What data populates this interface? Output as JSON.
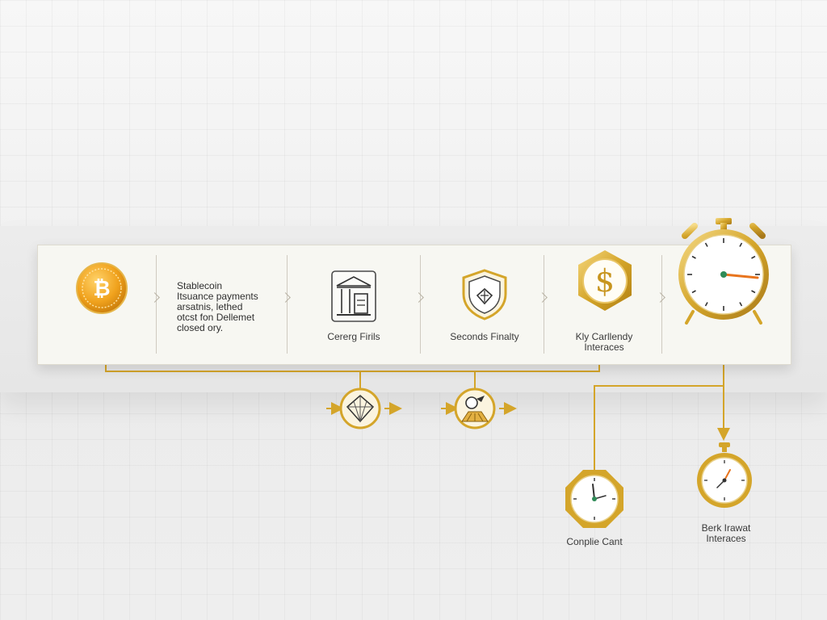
{
  "colors": {
    "gold": "#d4a52a",
    "gold_light": "#f1d27a",
    "gold_dark": "#a8791a",
    "coin_orange": "#f0a21d",
    "clock_hand_orange": "#e8741d",
    "clock_hand_green": "#2e8b57",
    "panel_bg": "#f7f7f2"
  },
  "stages": [
    {
      "name": "stablecoin-issuance",
      "icon": "bitcoin-coin-icon",
      "text": "Stablecoin\nItsuance payments\narsatnis, lethed\notcst fon Dellemet\nclosed ory."
    },
    {
      "name": "clearing-firms",
      "icon": "bank-building-icon",
      "label": "Cererg Firils"
    },
    {
      "name": "seconds-finality",
      "icon": "shield-icon",
      "label": "Seconds Finalty"
    },
    {
      "name": "key-currency-interfaces",
      "icon": "dollar-badge-icon",
      "label_line1": "Kly Carllendy",
      "label_line2": "Interaces"
    },
    {
      "name": "alarm-clock",
      "icon": "alarm-clock-icon"
    }
  ],
  "sub_nodes": [
    {
      "name": "diamond-node",
      "icon": "diamond-icon"
    },
    {
      "name": "rocket-node",
      "icon": "rocket-icon"
    }
  ],
  "clocks": [
    {
      "name": "compliance-clock",
      "icon": "clock-icon",
      "label_line1": "Conplie Cant"
    },
    {
      "name": "bank-interfaces-clock",
      "icon": "stopwatch-icon",
      "label_line1": "Berk Irawat",
      "label_line2": "Interaces"
    }
  ]
}
